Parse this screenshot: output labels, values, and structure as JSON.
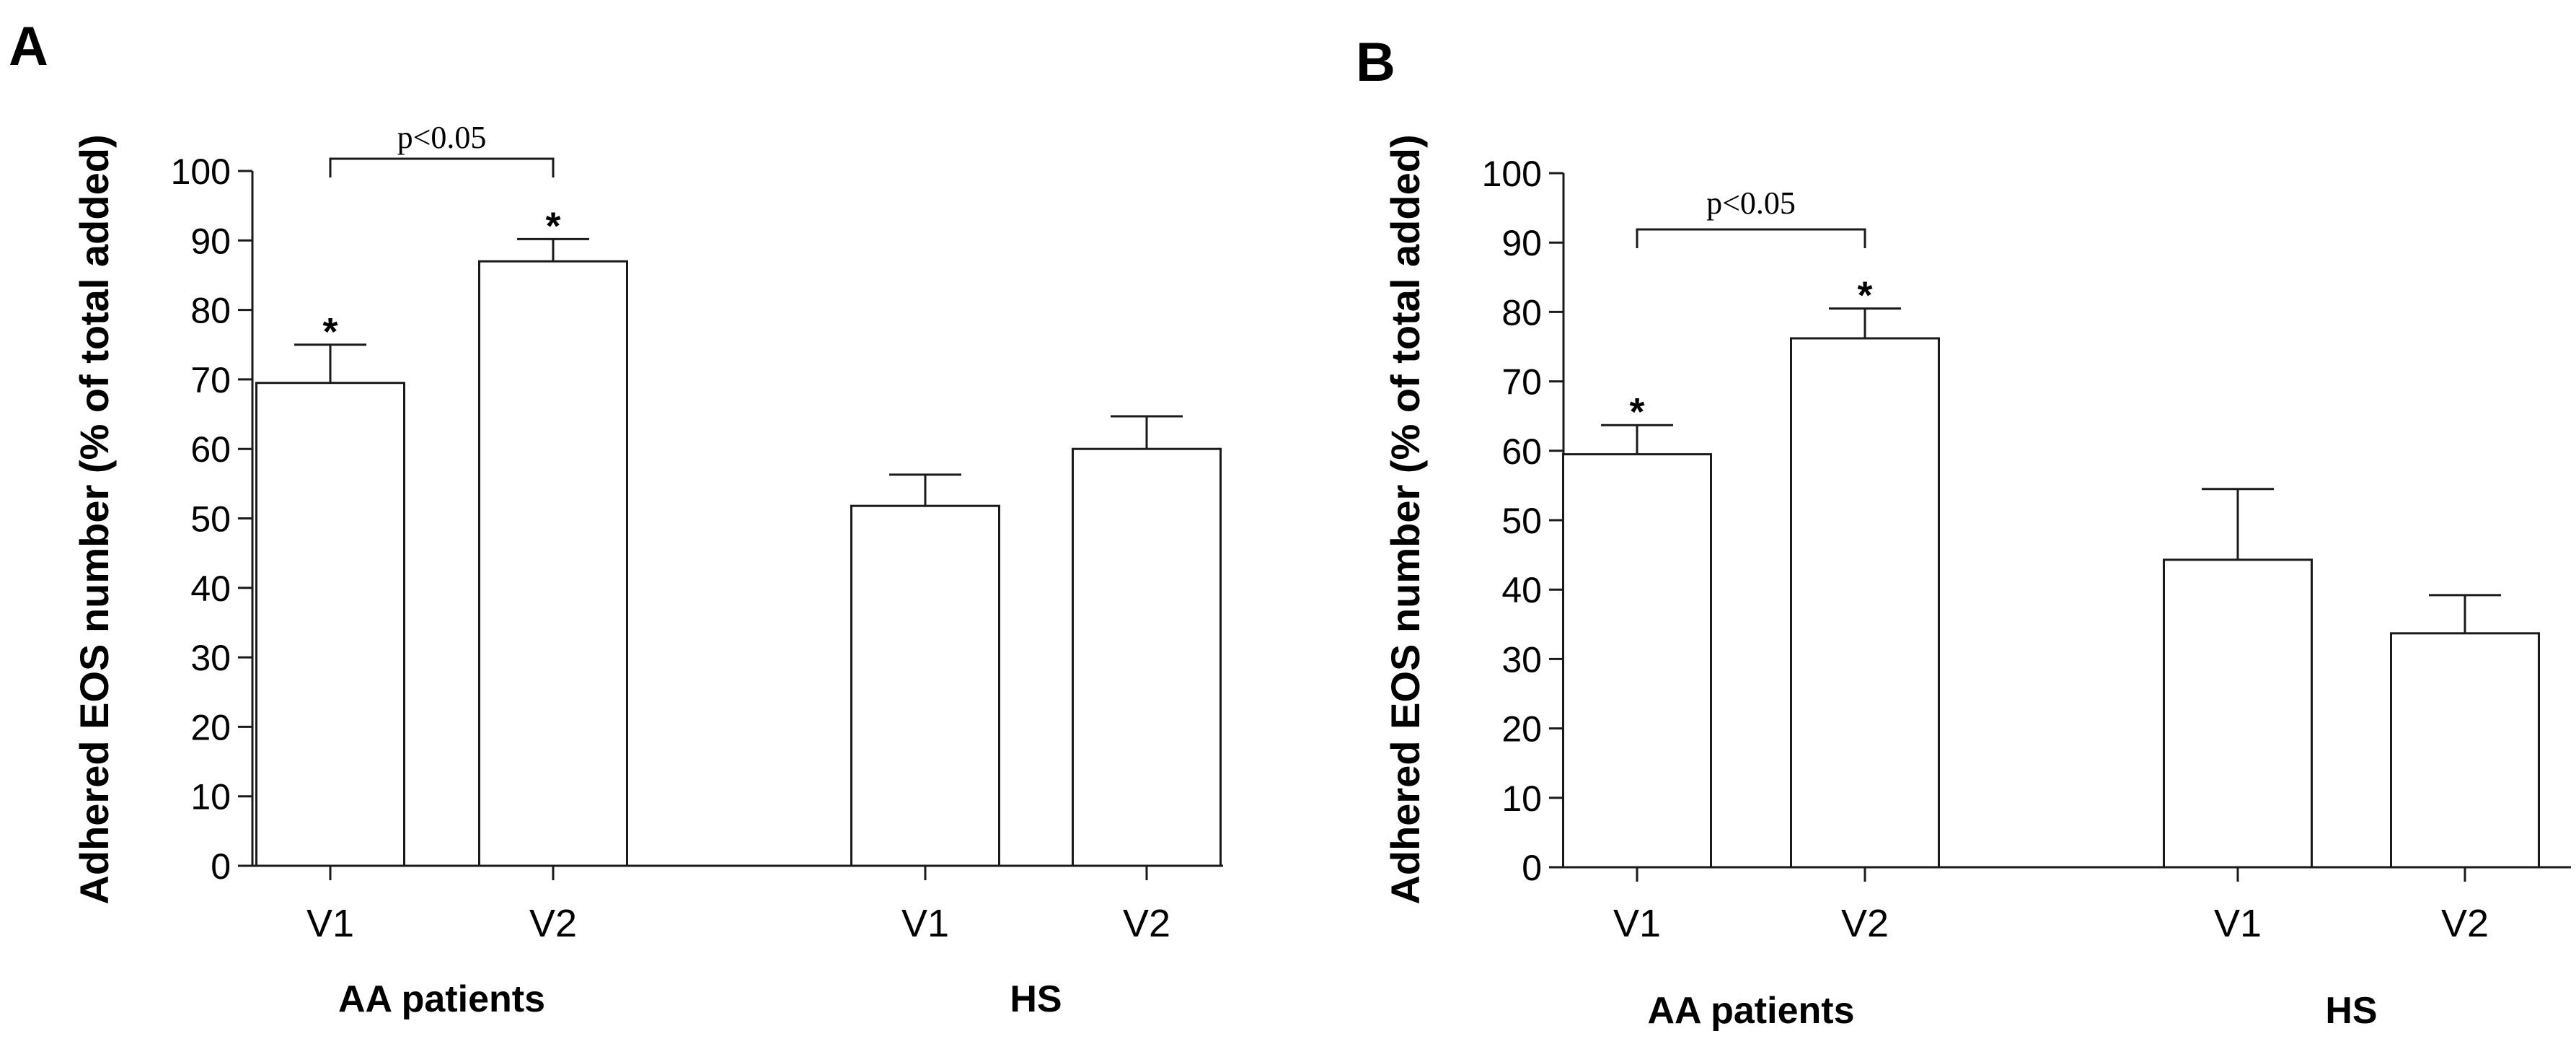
{
  "figure": {
    "panels": [
      {
        "label": "A",
        "ylabel": "Adhered EOS number (% of total added)",
        "yticks": [
          "0",
          "10",
          "20",
          "30",
          "40",
          "50",
          "60",
          "70",
          "80",
          "90",
          "100"
        ],
        "groups": [
          {
            "label": "AA patients",
            "bars": [
              {
                "label": "V1"
              },
              {
                "label": "V2"
              }
            ]
          },
          {
            "label": "HS",
            "bars": [
              {
                "label": "V1"
              },
              {
                "label": "V2"
              }
            ]
          }
        ],
        "bracket": {
          "label": "p<0.05"
        },
        "star": "*"
      },
      {
        "label": "B",
        "ylabel": "Adhered EOS number (% of total added)",
        "yticks": [
          "0",
          "10",
          "20",
          "30",
          "40",
          "50",
          "60",
          "70",
          "80",
          "90",
          "100"
        ],
        "groups": [
          {
            "label": "AA patients",
            "bars": [
              {
                "label": "V1"
              },
              {
                "label": "V2"
              }
            ]
          },
          {
            "label": "HS",
            "bars": [
              {
                "label": "V1"
              },
              {
                "label": "V2"
              }
            ]
          }
        ],
        "bracket": {
          "label": "p<0.05"
        },
        "star": "*"
      }
    ]
  },
  "chart_data": [
    {
      "type": "bar",
      "panel": "A",
      "title": "",
      "xlabel": "",
      "ylabel": "Adhered EOS number (% of total added)",
      "ylim": [
        0,
        100
      ],
      "yticks": [
        0,
        10,
        20,
        30,
        40,
        50,
        60,
        70,
        80,
        90,
        100
      ],
      "groups": [
        "AA patients",
        "HS"
      ],
      "categories": [
        "V1",
        "V2",
        "V1",
        "V2"
      ],
      "values": [
        69.5,
        87,
        51.8,
        60
      ],
      "errors": [
        5.5,
        3.2,
        4.5,
        4.7
      ],
      "significance": [
        true,
        true,
        false,
        false
      ],
      "comparisons": [
        {
          "from": 0,
          "to": 1,
          "label": "p<0.05"
        }
      ]
    },
    {
      "type": "bar",
      "panel": "B",
      "title": "",
      "xlabel": "",
      "ylabel": "Adhered EOS number (% of total added)",
      "ylim": [
        0,
        100
      ],
      "yticks": [
        0,
        10,
        20,
        30,
        40,
        50,
        60,
        70,
        80,
        90,
        100
      ],
      "groups": [
        "AA patients",
        "HS"
      ],
      "categories": [
        "V1",
        "V2",
        "V1",
        "V2"
      ],
      "values": [
        59.5,
        76.2,
        44.3,
        33.7
      ],
      "errors": [
        4.2,
        4.3,
        10.2,
        5.5
      ],
      "significance": [
        true,
        true,
        false,
        false
      ],
      "comparisons": [
        {
          "from": 0,
          "to": 1,
          "label": "p<0.05"
        }
      ]
    }
  ]
}
